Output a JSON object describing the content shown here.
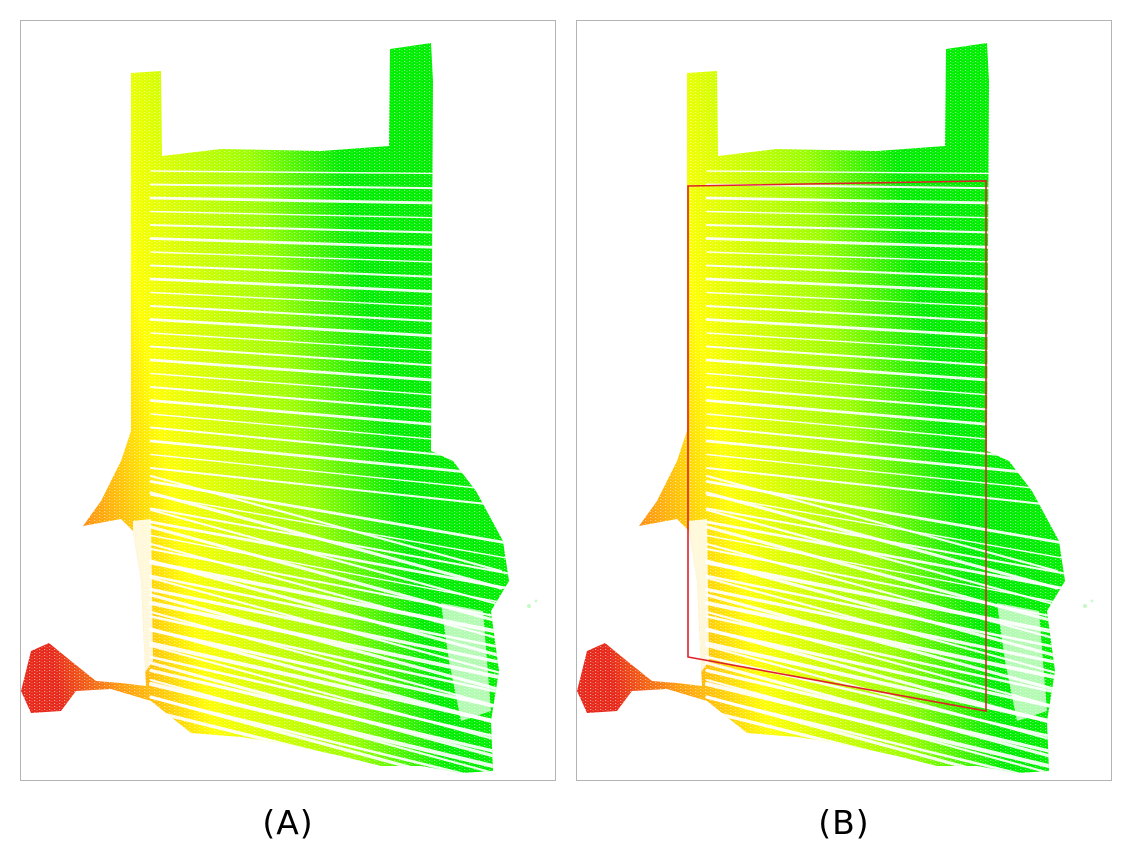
{
  "panels": [
    {
      "caption": "(A)",
      "shows_region_box": false
    },
    {
      "caption": "(B)",
      "shows_region_box": true
    }
  ],
  "colors": {
    "near": "#e82a1c",
    "mid": "#ffff00",
    "far": "#00ee00",
    "region_box": "#e0202a",
    "panel_border": "#b4b4b4"
  }
}
